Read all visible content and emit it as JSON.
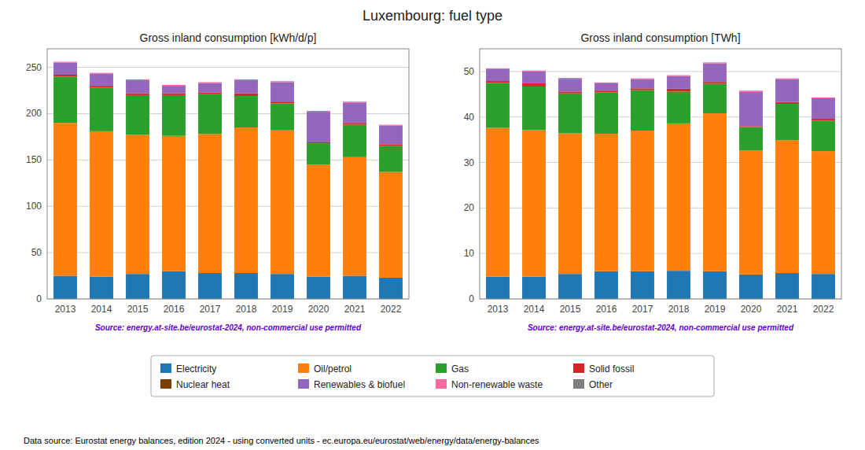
{
  "title": "Luxembourg: fuel type",
  "annotations": [
    "Data source: Eurostat energy balances, edition 2024 - using converted units - ec.europa.eu/eurostat/web/energy/data/energy-balances"
  ],
  "chart_data": [
    {
      "type": "bar",
      "stacked": true,
      "grid": true,
      "legend": "bottom",
      "title": "Gross inland consumption [kWh/d/p]",
      "annotations": [
        "Source: energy.at-site.be/eurostat-2024, non-commercial use permitted"
      ],
      "categories": [
        "2013",
        "2014",
        "2015",
        "2016",
        "2017",
        "2018",
        "2019",
        "2020",
        "2021",
        "2022"
      ],
      "ylim": [
        0,
        270
      ],
      "yticks": [
        0,
        50,
        100,
        150,
        200,
        250
      ],
      "series": [
        {
          "name": "Electricity",
          "color": "#1f77b4",
          "values": [
            25,
            24,
            27,
            30,
            28,
            28,
            27,
            24,
            25,
            23
          ]
        },
        {
          "name": "Oil/petrol",
          "color": "#ff7f0e",
          "values": [
            165,
            157,
            150,
            146,
            150,
            157,
            155,
            121,
            128,
            114
          ]
        },
        {
          "name": "Gas",
          "color": "#2ca02c",
          "values": [
            50,
            47,
            43,
            44,
            43,
            34,
            29,
            23,
            35,
            28
          ]
        },
        {
          "name": "Solid fossil",
          "color": "#d62728",
          "values": [
            2,
            2,
            2,
            2,
            2,
            3,
            2,
            1,
            2,
            2
          ]
        },
        {
          "name": "Nuclear heat",
          "color": "#7b3f00",
          "values": [
            0,
            0,
            0,
            0,
            0,
            0,
            0,
            0,
            0,
            0
          ]
        },
        {
          "name": "Renewables & biofuel",
          "color": "#9467bd",
          "values": [
            13,
            13,
            14,
            8,
            10,
            14,
            21,
            33,
            22,
            20
          ]
        },
        {
          "name": "Non-renewable waste",
          "color": "#f768a1",
          "values": [
            1,
            1,
            1,
            1,
            1,
            1,
            1,
            1,
            1,
            1
          ]
        },
        {
          "name": "Other",
          "color": "#7f7f7f",
          "values": [
            0,
            0,
            0,
            0,
            0,
            0,
            0,
            0,
            0,
            0
          ]
        }
      ]
    },
    {
      "type": "bar",
      "stacked": true,
      "grid": true,
      "title": "Gross inland consumption [TWh]",
      "annotations": [
        "Source: energy.at-site.be/eurostat-2024, non-commercial use permitted"
      ],
      "categories": [
        "2013",
        "2014",
        "2015",
        "2016",
        "2017",
        "2018",
        "2019",
        "2020",
        "2021",
        "2022"
      ],
      "ylim": [
        0,
        55
      ],
      "yticks": [
        0,
        10,
        20,
        30,
        40,
        50
      ],
      "series": [
        {
          "name": "Electricity",
          "color": "#1f77b4",
          "values": [
            4.9,
            4.9,
            5.5,
            6.1,
            6.1,
            6.2,
            6.1,
            5.4,
            5.7,
            5.5
          ]
        },
        {
          "name": "Oil/petrol",
          "color": "#ff7f0e",
          "values": [
            32.7,
            32.2,
            30.9,
            30.2,
            30.9,
            32.4,
            34.7,
            27.2,
            29.2,
            27.0
          ]
        },
        {
          "name": "Gas",
          "color": "#2ca02c",
          "values": [
            9.9,
            9.6,
            8.8,
            9.1,
            8.9,
            7.0,
            6.5,
            5.2,
            8.0,
            6.7
          ]
        },
        {
          "name": "Solid fossil",
          "color": "#d62728",
          "values": [
            0.4,
            0.7,
            0.4,
            0.4,
            0.4,
            0.6,
            0.4,
            0.2,
            0.4,
            0.4
          ]
        },
        {
          "name": "Nuclear heat",
          "color": "#7b3f00",
          "values": [
            0,
            0,
            0,
            0,
            0,
            0,
            0,
            0,
            0,
            0
          ]
        },
        {
          "name": "Renewables & biofuel",
          "color": "#9467bd",
          "values": [
            2.6,
            2.6,
            2.8,
            1.6,
            2.0,
            2.8,
            4.1,
            7.5,
            5.0,
            4.5
          ]
        },
        {
          "name": "Non-renewable waste",
          "color": "#f768a1",
          "values": [
            0.2,
            0.2,
            0.2,
            0.2,
            0.2,
            0.2,
            0.2,
            0.3,
            0.2,
            0.2
          ]
        },
        {
          "name": "Other",
          "color": "#7f7f7f",
          "values": [
            0,
            0,
            0,
            0,
            0,
            0,
            0,
            0,
            0,
            0
          ]
        }
      ]
    }
  ]
}
